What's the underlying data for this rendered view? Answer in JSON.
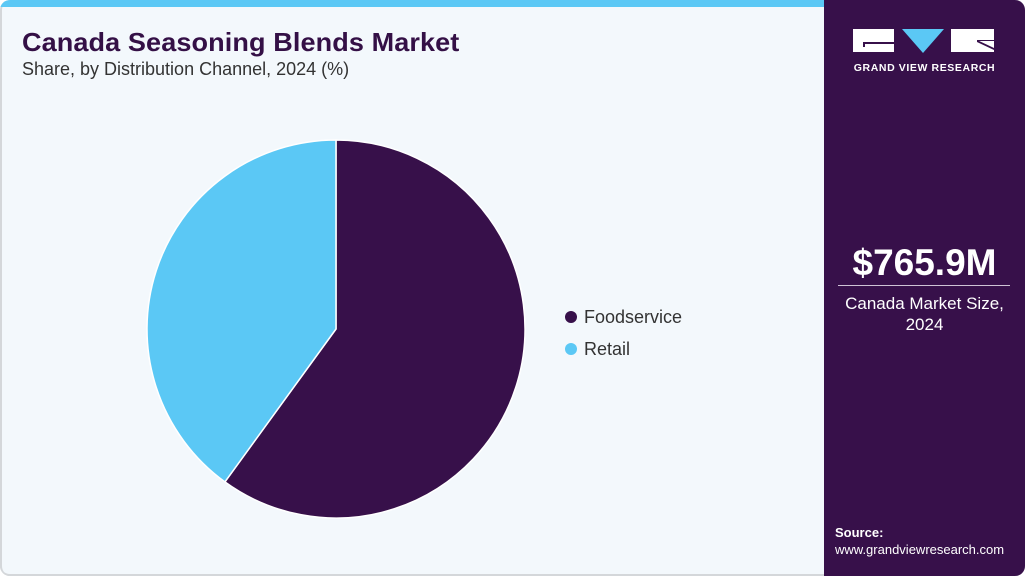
{
  "header": {
    "title": "Canada Seasoning Blends Market",
    "subtitle": "Share, by Distribution Channel, 2024 (%)"
  },
  "legend": [
    {
      "label": "Foodservice",
      "color": "#37104a"
    },
    {
      "label": "Retail",
      "color": "#5bc8f5"
    }
  ],
  "sidebar": {
    "logo_text": "GRAND VIEW RESEARCH",
    "market_size": "$765.9M",
    "market_caption_line1": "Canada Market Size,",
    "market_caption_line2": "2024",
    "source_label": "Source:",
    "source_url": "www.grandviewresearch.com"
  },
  "colors": {
    "brand_dark": "#37104a",
    "brand_light": "#5bc8f5",
    "background": "#f3f8fc"
  },
  "chart_data": {
    "type": "pie",
    "title": "Canada Seasoning Blends Market",
    "subtitle": "Share, by Distribution Channel, 2024 (%)",
    "categories": [
      "Foodservice",
      "Retail"
    ],
    "values": [
      60,
      40
    ],
    "colors": [
      "#37104a",
      "#5bc8f5"
    ],
    "start_angle_deg": 0,
    "direction": "clockwise",
    "legend_position": "right",
    "data_labels": false
  }
}
